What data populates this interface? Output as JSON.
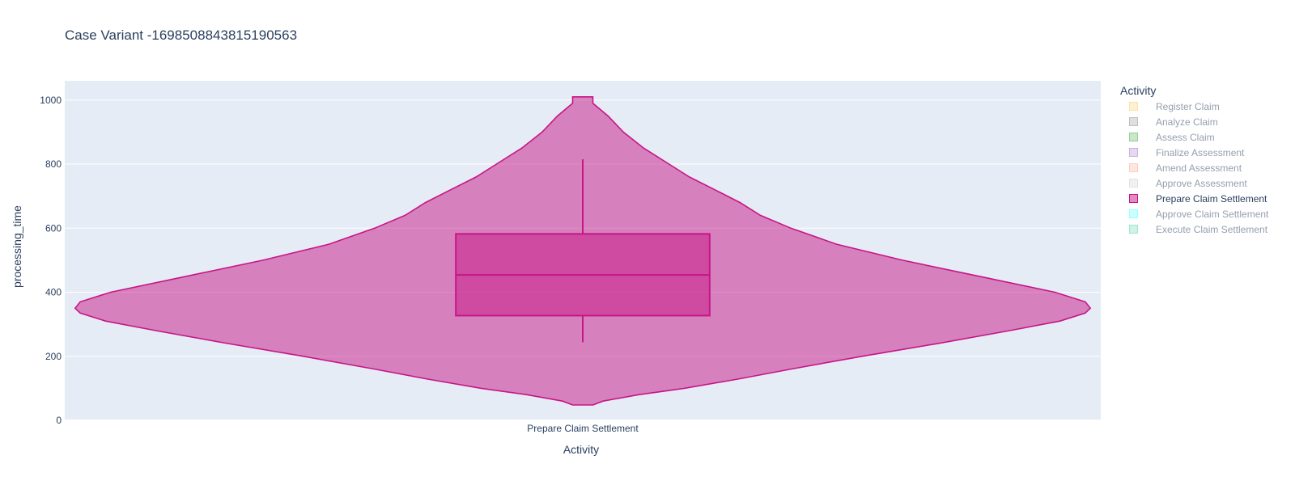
{
  "chart_data": {
    "type": "violin",
    "title": "Case Variant -1698508843815190563",
    "xlabel": "Activity",
    "ylabel": "processing_time",
    "ylim": [
      0,
      1060
    ],
    "yticks": [
      0,
      200,
      400,
      600,
      800,
      1000
    ],
    "grid": true,
    "legend_position": "right",
    "legend_title": "Activity",
    "categories": [
      "Prepare Claim Settlement"
    ],
    "series": [
      {
        "name": "Prepare Claim Settlement",
        "category": "Prepare Claim Settlement",
        "color": "#c71585",
        "box": {
          "q1": 327,
          "median": 454,
          "q3": 582,
          "whisker_low": 244,
          "whisker_high": 815
        },
        "density": [
          [
            48,
            0.02
          ],
          [
            60,
            0.04
          ],
          [
            80,
            0.11
          ],
          [
            100,
            0.2
          ],
          [
            130,
            0.31
          ],
          [
            160,
            0.41
          ],
          [
            200,
            0.55
          ],
          [
            240,
            0.7
          ],
          [
            280,
            0.84
          ],
          [
            310,
            0.94
          ],
          [
            335,
            0.99
          ],
          [
            350,
            1.0
          ],
          [
            370,
            0.99
          ],
          [
            400,
            0.93
          ],
          [
            450,
            0.78
          ],
          [
            500,
            0.63
          ],
          [
            550,
            0.5
          ],
          [
            600,
            0.41
          ],
          [
            640,
            0.35
          ],
          [
            680,
            0.31
          ],
          [
            720,
            0.26
          ],
          [
            760,
            0.21
          ],
          [
            800,
            0.17
          ],
          [
            850,
            0.12
          ],
          [
            900,
            0.08
          ],
          [
            950,
            0.05
          ],
          [
            990,
            0.02
          ],
          [
            1010,
            0.02
          ]
        ]
      }
    ],
    "legend_entries": [
      {
        "name": "Register Claim",
        "color": "#f9c74f",
        "visible": false
      },
      {
        "name": "Analyze Claim",
        "color": "#7f7f7f",
        "visible": false
      },
      {
        "name": "Assess Claim",
        "color": "#2ca02c",
        "visible": false
      },
      {
        "name": "Finalize Assessment",
        "color": "#9467bd",
        "visible": false
      },
      {
        "name": "Amend Assessment",
        "color": "#ff9f80",
        "visible": false
      },
      {
        "name": "Approve Assessment",
        "color": "#c7c7c7",
        "visible": false
      },
      {
        "name": "Prepare Claim Settlement",
        "color": "#c71585",
        "visible": true
      },
      {
        "name": "Approve Claim Settlement",
        "color": "#33ffff",
        "visible": false
      },
      {
        "name": "Execute Claim Settlement",
        "color": "#3fcea0",
        "visible": false
      }
    ]
  }
}
